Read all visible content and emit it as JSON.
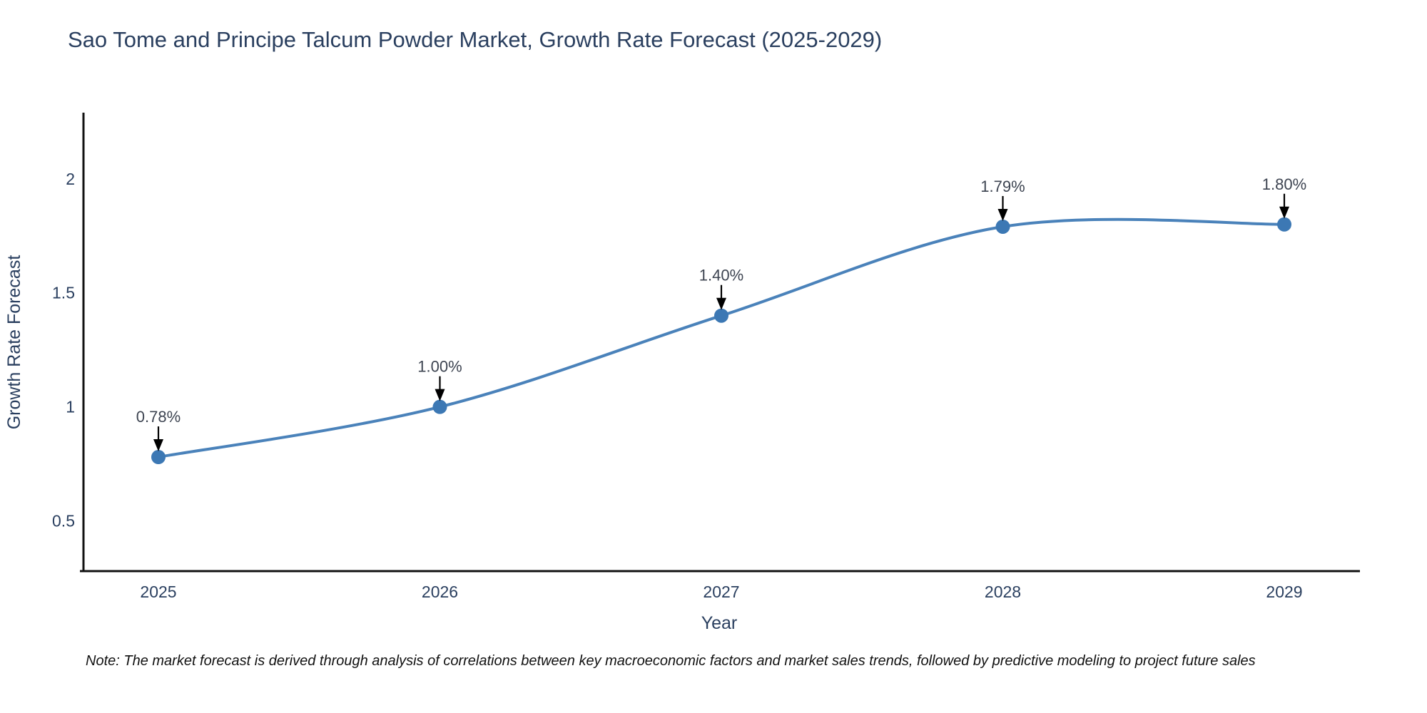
{
  "chart_data": {
    "type": "line",
    "title": "Sao Tome and Principe Talcum Powder Market, Growth Rate Forecast (2025-2029)",
    "xlabel": "Year",
    "ylabel": "Growth Rate Forecast",
    "categories": [
      "2025",
      "2026",
      "2027",
      "2028",
      "2029"
    ],
    "values": [
      0.78,
      1.0,
      1.4,
      1.79,
      1.8
    ],
    "point_labels": [
      "0.78%",
      "1.00%",
      "1.40%",
      "1.79%",
      "1.80%"
    ],
    "yticks": [
      0.5,
      1,
      1.5,
      2
    ],
    "ylim": [
      0.28,
      2.29
    ],
    "grid": false,
    "legend": "none",
    "line_color": "#4a82ba",
    "marker_color": "#3c78b4",
    "axis_color": "#111111",
    "text_color": "#2a3f5f",
    "annotation_text_color": "#3d4451",
    "arrow_color": "#000000",
    "note": "Note: The market forecast is derived through analysis of correlations between key macroeconomic factors and market sales trends, followed by predictive modeling to project future sales"
  }
}
